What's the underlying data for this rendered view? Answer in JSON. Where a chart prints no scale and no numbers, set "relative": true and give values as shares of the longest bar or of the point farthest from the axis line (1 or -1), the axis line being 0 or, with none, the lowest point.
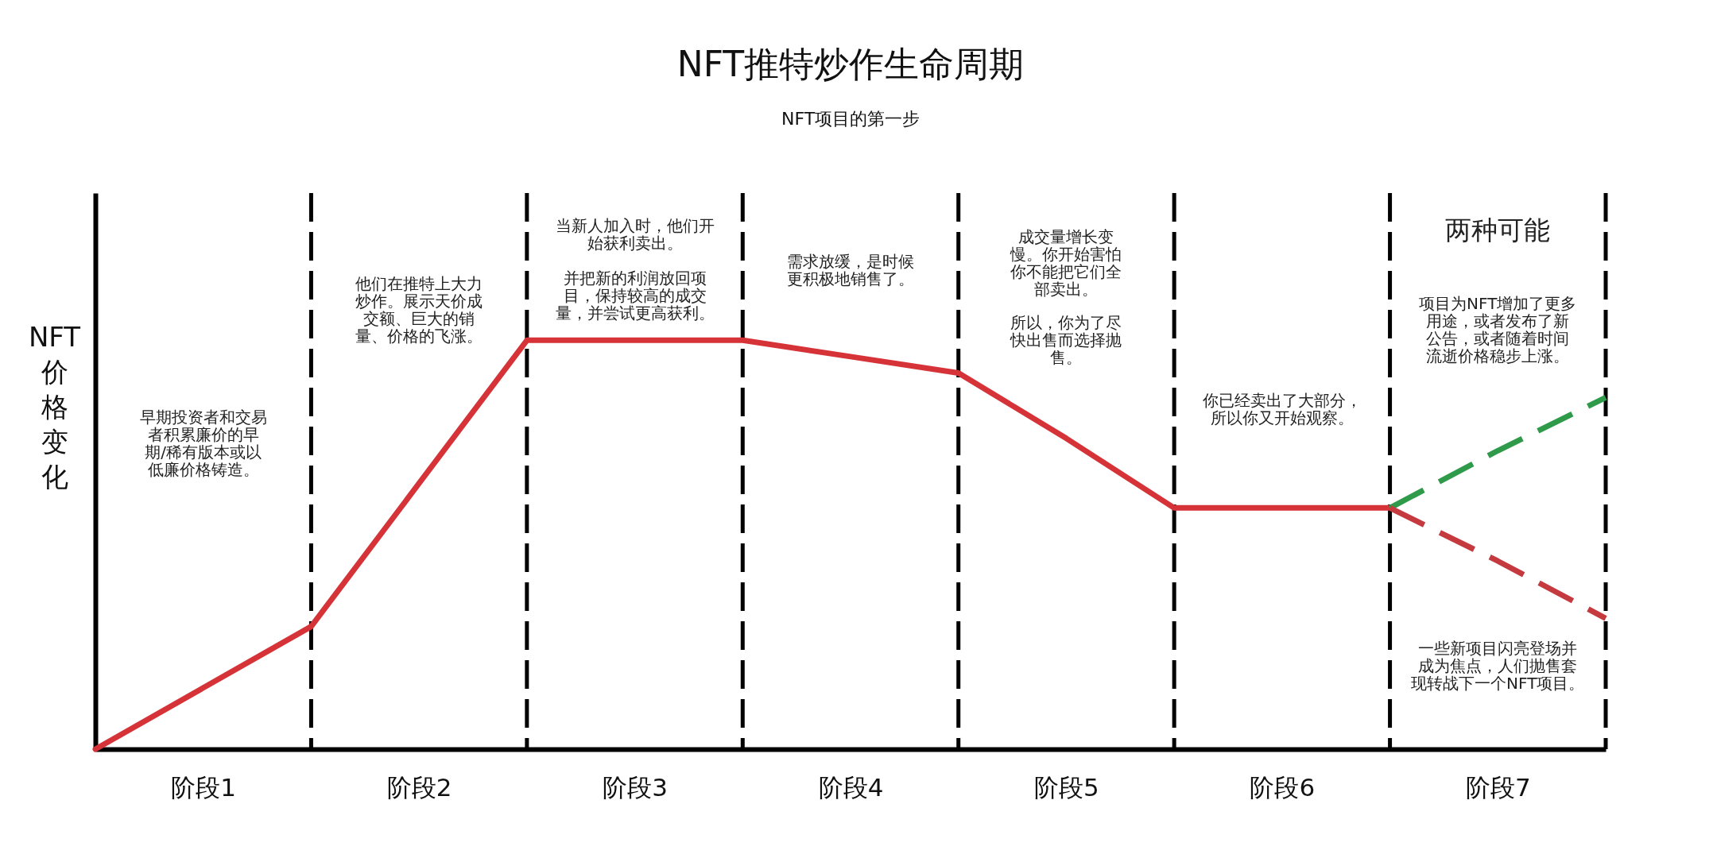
{
  "chart_data": {
    "type": "line",
    "title": "NFT推特炒作生命周期",
    "subtitle": "NFT项目的第一步",
    "ylabel": "NFT价格变化",
    "categories": [
      null,
      "阶段1",
      null,
      "阶段2",
      null,
      "阶段3",
      null,
      "阶段4",
      null,
      "阶段5",
      null,
      "阶段6",
      null,
      "阶段7",
      null
    ],
    "relative": true,
    "line_style": "solid",
    "grid": "x",
    "series": [
      {
        "color": "#d63339",
        "values": [
          0,
          0.15,
          0.3,
          0.65,
          1,
          1,
          1,
          0.96,
          0.92,
          0.76,
          0.59,
          0.59,
          0.59,
          null,
          null
        ]
      },
      {
        "color": "#2f9a4a",
        "values": [
          null,
          null,
          null,
          null,
          null,
          null,
          null,
          null,
          null,
          null,
          null,
          null,
          0.59,
          0.73,
          0.86
        ],
        "line_style": "dashed"
      },
      {
        "color": "#c43a3f",
        "values": [
          null,
          null,
          null,
          null,
          null,
          null,
          null,
          null,
          null,
          null,
          null,
          null,
          0.59,
          0.46,
          0.32
        ],
        "line_style": "dashed"
      }
    ],
    "annotations": [
      "早期投资者和交易者积累廉价的早期/稀有版本或以低廉价格铸造。",
      "他们在推特上大力炒作。展示天价成交额、巨大的销量、价格的飞涨。",
      "当新人加入时，他们开始获利卖出。",
      "并把新的利润放回项目，保持较高的成交量，并尝试更高获利。",
      "需求放缓，是时候更积极地销售了。",
      "成交量增长变慢。你开始害怕你不能把它们全部卖出。",
      "所以，你为了尽快出售而选择抛售。",
      "你已经卖出了大部分，所以你又开始观察。",
      "两种可能",
      "项目为NFT增加了更多用途，或者发布了新公告，或者随着时间流逝价格稳步上涨。",
      "一些新项目闪亮登场并成为焦点，人们抛售套现转战下一个NFT项目。"
    ]
  }
}
